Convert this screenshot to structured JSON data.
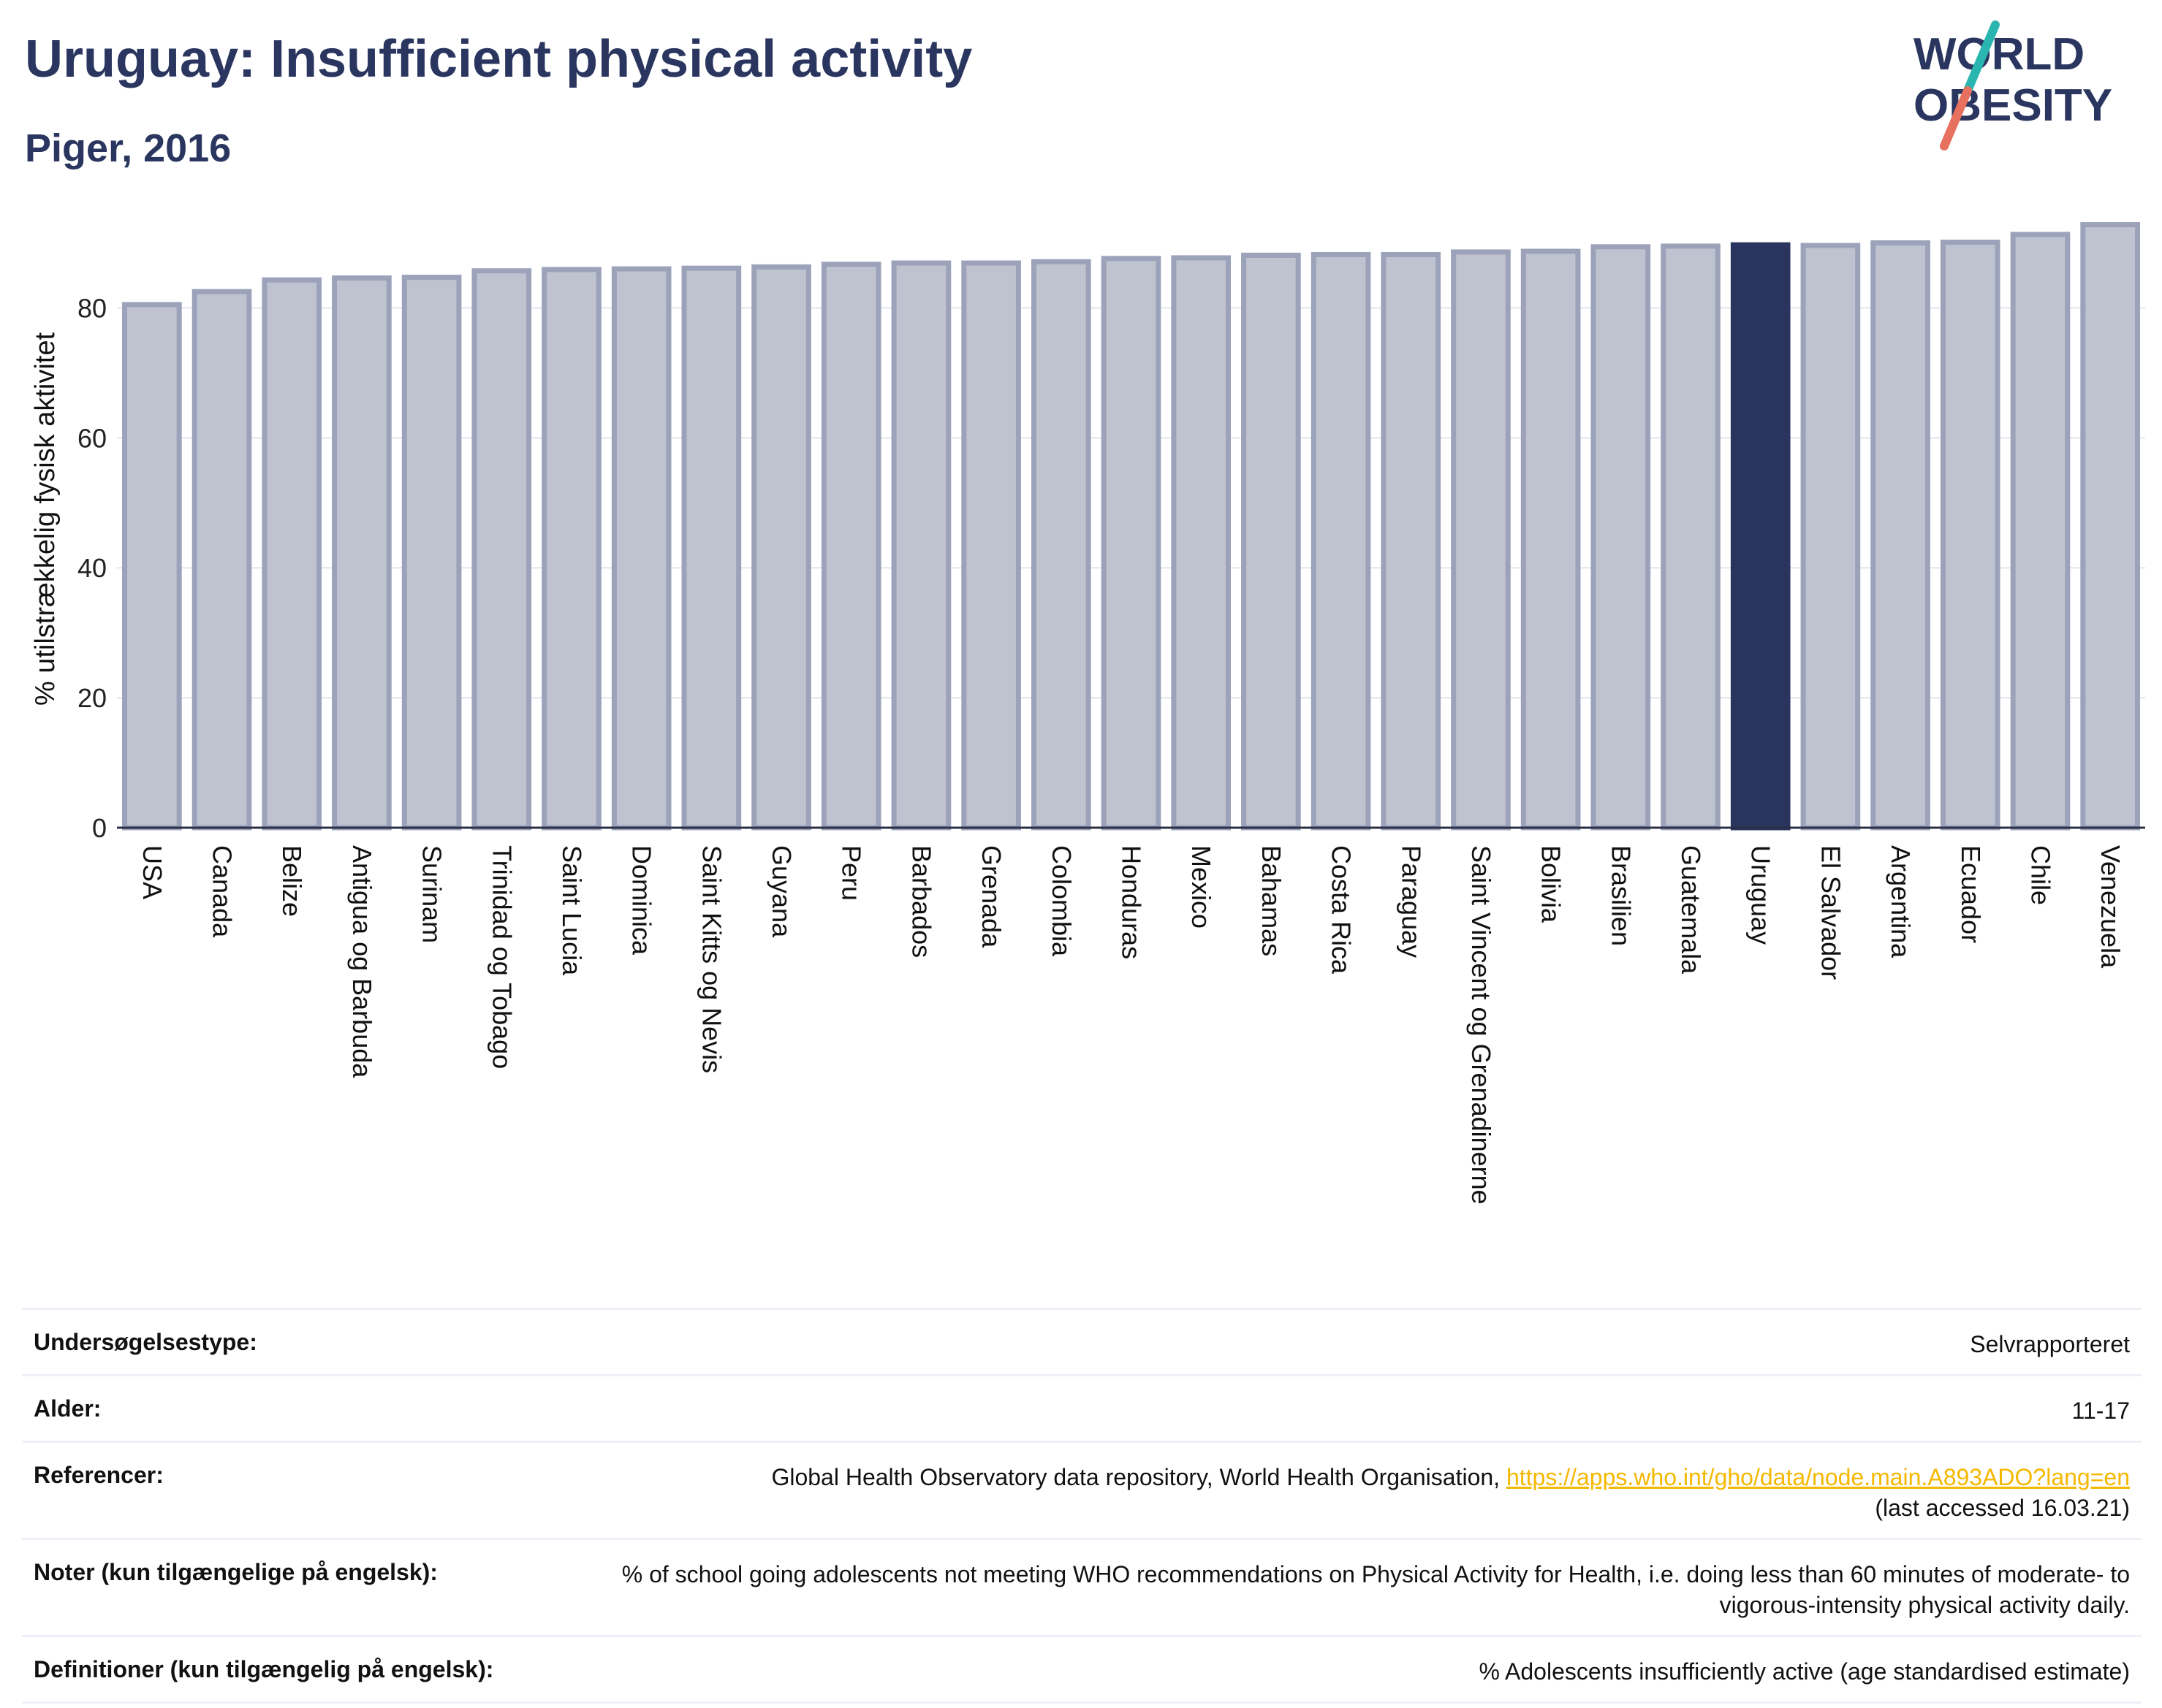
{
  "header": {
    "title": "Uruguay: Insufficient physical activity",
    "subtitle": "Piger, 2016"
  },
  "logo": {
    "line1": "WORLD",
    "line2": "OBESITY"
  },
  "colors": {
    "highlight": "#29355f",
    "bar_fill": "#bfc3d0",
    "bar_stroke": "#9ba2ba",
    "title": "#2a365f",
    "link": "#f5b800"
  },
  "chart_data": {
    "type": "bar",
    "ylabel": "% utilstrækkelig fysisk aktivitet",
    "xlabel": "",
    "ylim": [
      0,
      95
    ],
    "yticks": [
      0,
      20,
      40,
      60,
      80
    ],
    "grid": true,
    "highlight": "Uruguay",
    "categories": [
      "USA",
      "Canada",
      "Belize",
      "Antigua og Barbuda",
      "Surinam",
      "Trinidad og Tobago",
      "Saint Lucia",
      "Dominica",
      "Saint Kitts og Nevis",
      "Guyana",
      "Peru",
      "Barbados",
      "Grenada",
      "Colombia",
      "Honduras",
      "Mexico",
      "Bahamas",
      "Costa Rica",
      "Paraguay",
      "Saint Vincent og Grenadinerne",
      "Bolivia",
      "Brasilien",
      "Guatemala",
      "Uruguay",
      "El Salvador",
      "Argentina",
      "Ecuador",
      "Chile",
      "Venezuela"
    ],
    "values": [
      80.5,
      82.5,
      84.3,
      84.6,
      84.7,
      85.7,
      85.9,
      86.0,
      86.1,
      86.3,
      86.7,
      86.9,
      86.9,
      87.1,
      87.6,
      87.7,
      88.1,
      88.2,
      88.2,
      88.6,
      88.7,
      89.4,
      89.5,
      89.7,
      89.6,
      90.0,
      90.1,
      91.3,
      92.8
    ]
  },
  "meta": {
    "survey_label": "Undersøgelsestype:",
    "survey_value": "Selvrapporteret",
    "age_label": "Alder:",
    "age_value": "11-17",
    "ref_label": "Referencer:",
    "ref_text": "Global Health Observatory data repository, World Health Organisation,",
    "ref_link": "https://apps.who.int/gho/data/node.main.A893ADO?lang=en",
    "ref_accessed": "(last accessed 16.03.21)",
    "notes_label": "Noter (kun tilgængelige på engelsk):",
    "notes_value": "% of school going adolescents not meeting WHO recommendations on Physical Activity for Health, i.e. doing less than 60 minutes of moderate- to vigorous-intensity physical activity daily.",
    "def_label": "Definitioner (kun tilgængelig på engelsk):",
    "def_value": "% Adolescents insufficiently active (age standardised estimate)"
  }
}
